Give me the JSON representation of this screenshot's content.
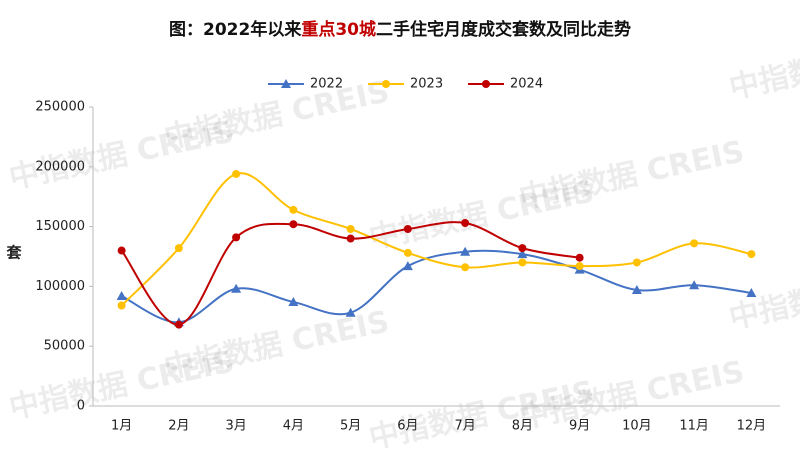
{
  "chart_data": {
    "type": "line",
    "title_parts": [
      "图：2022年以来",
      "重点30城",
      "二手住宅月度成交套数及同比走势"
    ],
    "title_colors": [
      "#111111",
      "#c00000",
      "#111111"
    ],
    "ylabel": "套",
    "watermark": "中指数据 CREIS",
    "categories": [
      "1月",
      "2月",
      "3月",
      "4月",
      "5月",
      "6月",
      "7月",
      "8月",
      "9月",
      "10月",
      "11月",
      "12月"
    ],
    "series": [
      {
        "name": "2022",
        "color": "#4472c4",
        "marker": "triangle",
        "values": [
          92000,
          70000,
          98000,
          87000,
          78000,
          117000,
          129000,
          127000,
          114000,
          97000,
          101000,
          94500
        ]
      },
      {
        "name": "2023",
        "color": "#ffc000",
        "marker": "circle",
        "values": [
          84000,
          132000,
          194000,
          164000,
          148000,
          128000,
          116000,
          120000,
          117000,
          120000,
          136000,
          127000
        ]
      },
      {
        "name": "2024",
        "color": "#c00000",
        "marker": "circle",
        "values": [
          130000,
          68000,
          141000,
          152000,
          140000,
          148000,
          153000,
          132000,
          124000,
          null,
          null,
          null
        ]
      }
    ],
    "ylim": [
      0,
      250000
    ],
    "yticks": [
      0,
      50000,
      100000,
      150000,
      200000,
      250000
    ],
    "legend": "top"
  }
}
